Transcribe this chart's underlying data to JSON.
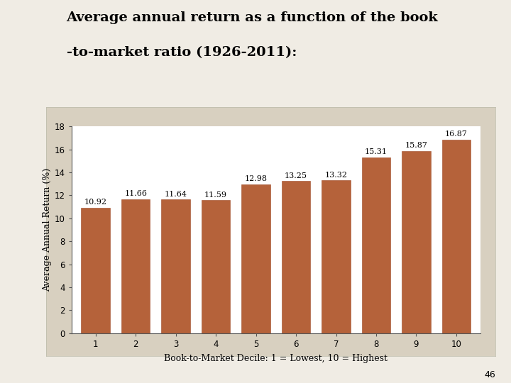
{
  "title_line1": "Average annual return as a function of the book",
  "title_line2": "-to-market ratio (1926-2011):",
  "categories": [
    1,
    2,
    3,
    4,
    5,
    6,
    7,
    8,
    9,
    10
  ],
  "values": [
    10.92,
    11.66,
    11.64,
    11.59,
    12.98,
    13.25,
    13.32,
    15.31,
    15.87,
    16.87
  ],
  "bar_color": "#b5623a",
  "bar_edge_color": "#9e4a28",
  "ylabel": "Average Annual Return (%)",
  "xlabel": "Book-to-Market Decile: 1 = Lowest, 10 = Highest",
  "ylim": [
    0,
    18
  ],
  "yticks": [
    0,
    2,
    4,
    6,
    8,
    10,
    12,
    14,
    16,
    18
  ],
  "page_bg_color": "#f0ece4",
  "chart_frame_color": "#d8d0c0",
  "plot_bg_color": "#ffffff",
  "title_fontsize": 14,
  "label_fontsize": 9,
  "tick_fontsize": 8.5,
  "annotation_fontsize": 8,
  "page_number": "46"
}
